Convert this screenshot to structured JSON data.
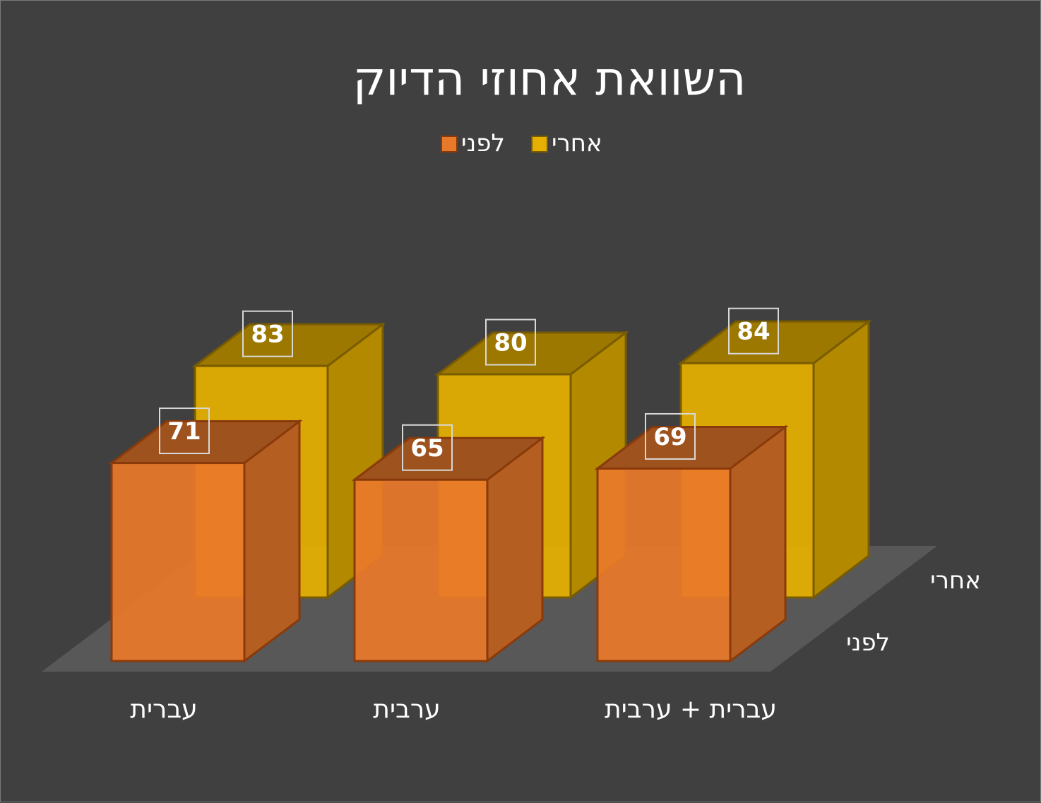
{
  "chart_data": {
    "type": "bar",
    "title": "השוואת אחוזי הדיוק",
    "categories": [
      "עברית",
      "ערבית",
      "עברית + ערבית"
    ],
    "series": [
      {
        "name": "לפני",
        "values": [
          71,
          65,
          69
        ],
        "color": "#E8792A",
        "edge": "#8A3A0A"
      },
      {
        "name": "אחרי",
        "values": [
          83,
          80,
          84
        ],
        "color": "#E6B000",
        "edge": "#7A5C00"
      }
    ],
    "ylim": [
      0,
      100
    ],
    "legend_position": "top",
    "grid": false,
    "depth_axis_labels": [
      "לפני",
      "אחרי"
    ]
  },
  "colors": {
    "background": "#404040",
    "floor": "#585858",
    "text": "#FFFFFF"
  }
}
